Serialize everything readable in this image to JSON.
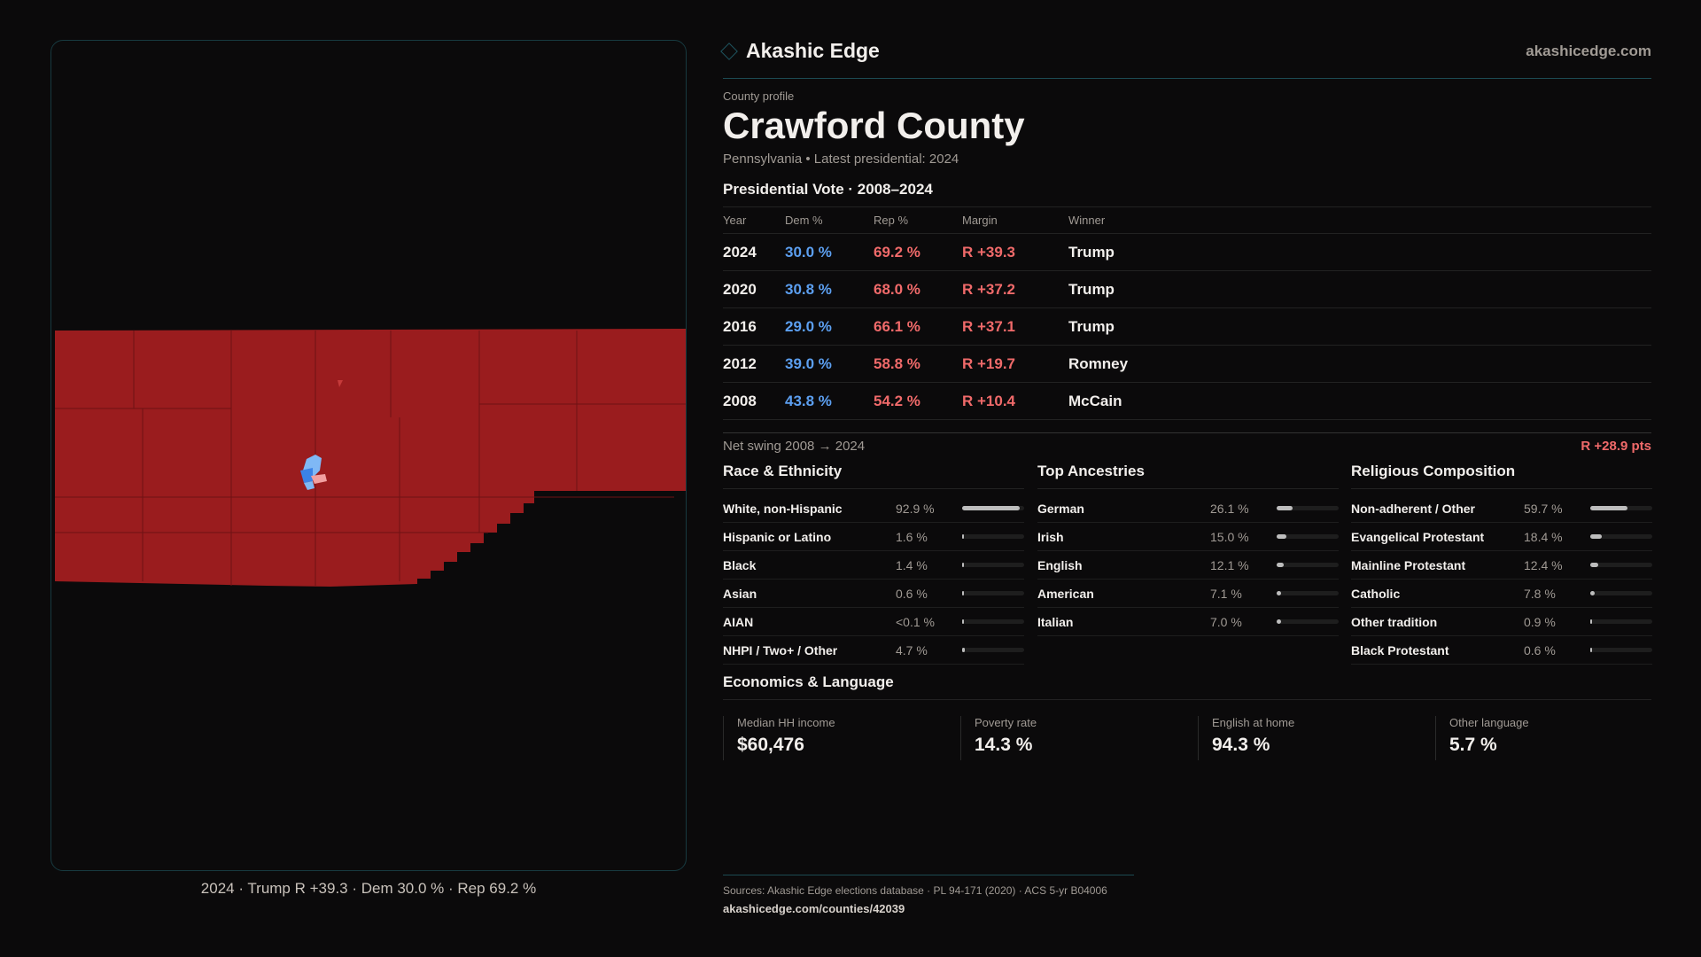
{
  "brand": {
    "name": "Akashic Edge",
    "site": "akashicedge.com"
  },
  "header": {
    "kicker": "County profile",
    "title": "Crawford County",
    "subtitle": "Pennsylvania • Latest presidential: 2024"
  },
  "map": {
    "caption": "2024 · Trump R +39.3 · Dem 30.0 % · Rep 69.2 %",
    "colors": {
      "rep": "#9a1c1e",
      "dem_light": "#7fb8f5",
      "dem": "#3b82e6",
      "rep_light": "#f2a0a0"
    }
  },
  "vote": {
    "heading": "Presidential Vote · 2008–2024",
    "columns": [
      "Year",
      "Dem %",
      "Rep %",
      "Margin",
      "Winner"
    ],
    "rows": [
      [
        "2024",
        "30.0 %",
        "69.2 %",
        "R +39.3",
        "Trump"
      ],
      [
        "2020",
        "30.8 %",
        "68.0 %",
        "R +37.2",
        "Trump"
      ],
      [
        "2016",
        "29.0 %",
        "66.1 %",
        "R +37.1",
        "Trump"
      ],
      [
        "2012",
        "39.0 %",
        "58.8 %",
        "R +19.7",
        "Romney"
      ],
      [
        "2008",
        "43.8 %",
        "54.2 %",
        "R +10.4",
        "McCain"
      ]
    ],
    "swing_label": "Net swing 2008 → 2024",
    "swing_value": "R +28.9 pts"
  },
  "race": {
    "heading": "Race & Ethnicity",
    "items": [
      {
        "label": "White, non-Hispanic",
        "value": "92.9 %",
        "pct": 92.9
      },
      {
        "label": "Hispanic or Latino",
        "value": "1.6 %",
        "pct": 1.6
      },
      {
        "label": "Black",
        "value": "1.4 %",
        "pct": 1.4
      },
      {
        "label": "Asian",
        "value": "0.6 %",
        "pct": 0.6
      },
      {
        "label": "AIAN",
        "value": "<0.1 %",
        "pct": 0
      },
      {
        "label": "NHPI / Two+ / Other",
        "value": "4.7 %",
        "pct": 4.7
      }
    ]
  },
  "ancestry": {
    "heading": "Top Ancestries",
    "items": [
      {
        "label": "German",
        "value": "26.1 %",
        "pct": 26.1
      },
      {
        "label": "Irish",
        "value": "15.0 %",
        "pct": 15.0
      },
      {
        "label": "English",
        "value": "12.1 %",
        "pct": 12.1
      },
      {
        "label": "American",
        "value": "7.1 %",
        "pct": 7.1
      },
      {
        "label": "Italian",
        "value": "7.0 %",
        "pct": 7.0
      }
    ]
  },
  "religion": {
    "heading": "Religious Composition",
    "items": [
      {
        "label": "Non-adherent / Other",
        "value": "59.7 %",
        "pct": 59.7
      },
      {
        "label": "Evangelical Protestant",
        "value": "18.4 %",
        "pct": 18.4
      },
      {
        "label": "Mainline Protestant",
        "value": "12.4 %",
        "pct": 12.4
      },
      {
        "label": "Catholic",
        "value": "7.8 %",
        "pct": 7.8
      },
      {
        "label": "Other tradition",
        "value": "0.9 %",
        "pct": 0.9
      },
      {
        "label": "Black Protestant",
        "value": "0.6 %",
        "pct": 0.6
      }
    ]
  },
  "econ": {
    "heading": "Economics & Language",
    "stats": [
      {
        "label": "Median HH income",
        "value": "$60,476"
      },
      {
        "label": "Poverty rate",
        "value": "14.3 %"
      },
      {
        "label": "English at home",
        "value": "94.3 %"
      },
      {
        "label": "Other language",
        "value": "5.7 %"
      }
    ]
  },
  "footer": {
    "sources": "Sources: Akashic Edge elections database · PL 94-171 (2020) · ACS 5-yr B04006",
    "url": "akashicedge.com/counties/42039"
  }
}
